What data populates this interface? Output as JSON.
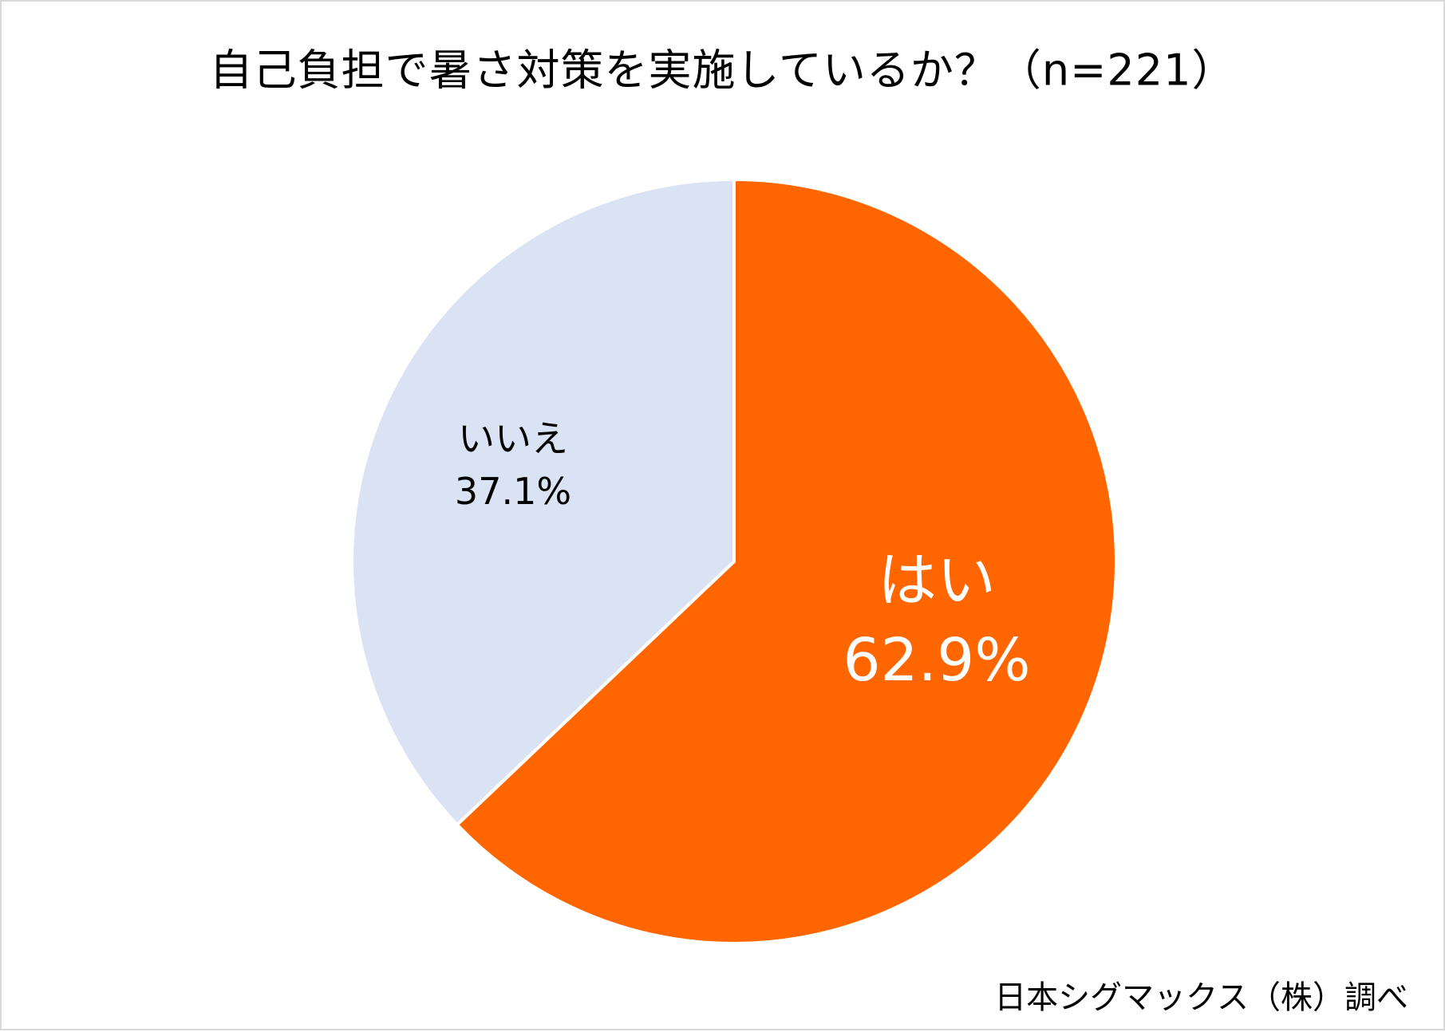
{
  "chart_data": {
    "type": "pie",
    "title": "自己負担で暑さ対策を実施しているか？（n=221）",
    "start": "top",
    "direction": "clockwise",
    "slices": [
      {
        "label": "はい",
        "value": 62.9,
        "value_label": "62.9%",
        "color": "#FF6600",
        "label_color": "#FFFFFF"
      },
      {
        "label": "いいえ",
        "value": 37.1,
        "value_label": "37.1%",
        "color": "#DAE3F3",
        "label_color": "#000000"
      }
    ],
    "slice_border_color": "#FFFFFF"
  },
  "source_note": "日本シグマックス（株）調べ"
}
